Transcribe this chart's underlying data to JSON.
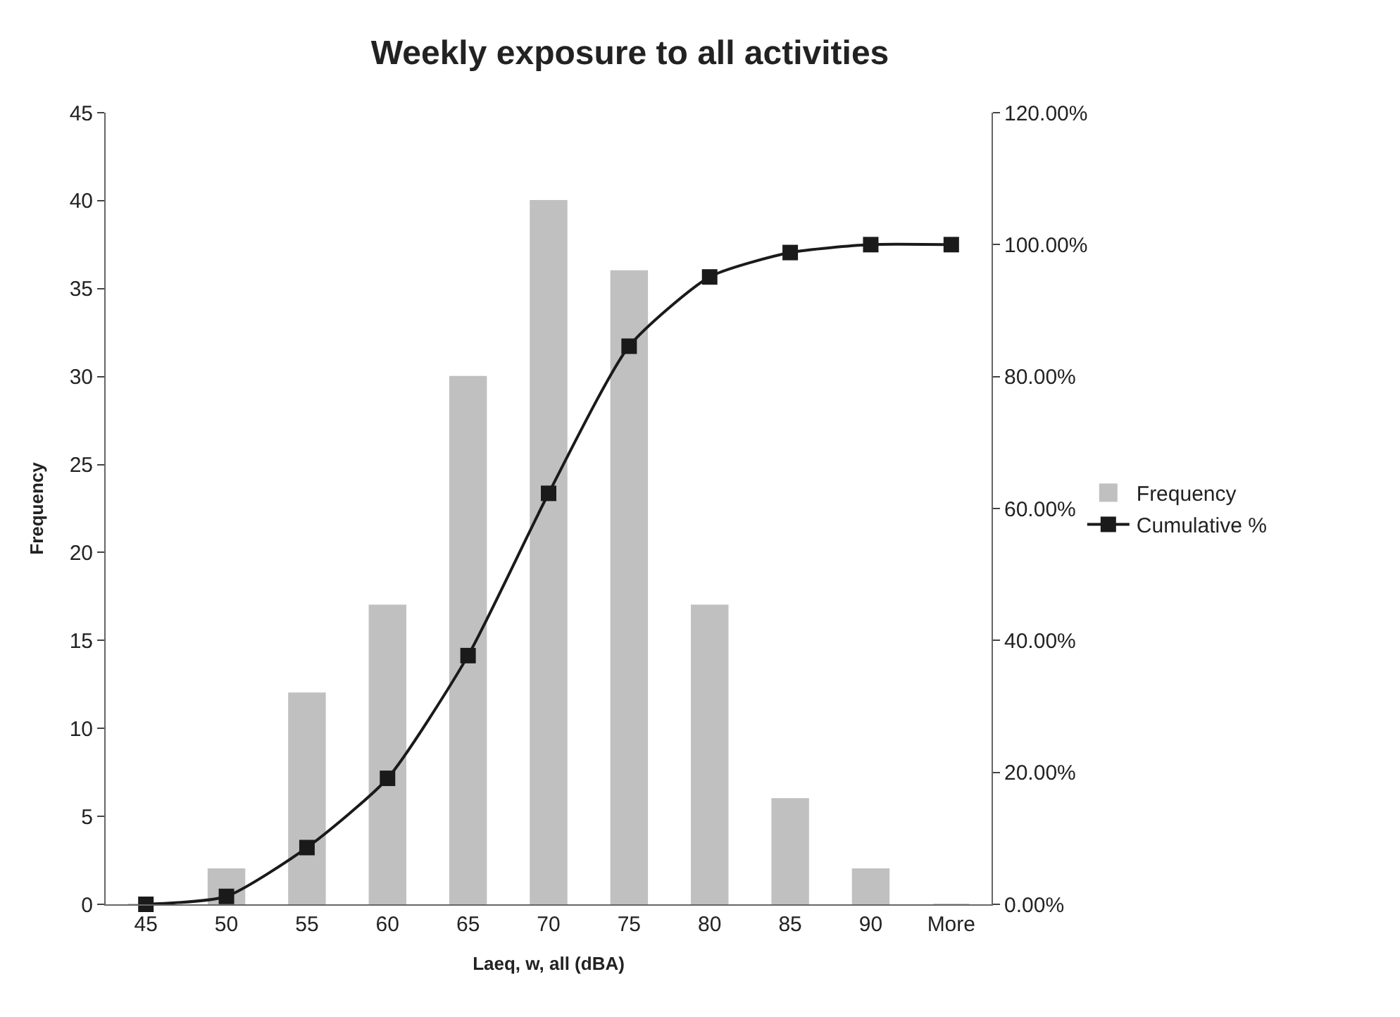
{
  "chart_data": {
    "type": "bar",
    "title": "Weekly exposure to all activities",
    "xlabel": "Laeq, w, all (dBA)",
    "ylabel": "Frequency",
    "categories": [
      "45",
      "50",
      "55",
      "60",
      "65",
      "70",
      "75",
      "80",
      "85",
      "90",
      "More"
    ],
    "series": [
      {
        "name": "Frequency",
        "color": "#c0c0c0",
        "values": [
          0,
          2,
          12,
          17,
          30,
          40,
          36,
          17,
          6,
          2,
          0
        ]
      },
      {
        "name": "Cumulative %",
        "type": "line",
        "axis": "y2",
        "color": "#1a1a1a",
        "marker": "square",
        "line_style": "solid",
        "values": [
          0,
          1.2,
          8.6,
          19.1,
          37.7,
          62.3,
          84.6,
          95.1,
          98.8,
          100,
          100
        ]
      }
    ],
    "ylim": [
      0,
      45
    ],
    "yticks": [
      0,
      5,
      10,
      15,
      20,
      25,
      30,
      35,
      40,
      45
    ],
    "y2lim": [
      0,
      120
    ],
    "y2ticks": [
      {
        "value": 0,
        "label": "0.00%"
      },
      {
        "value": 20,
        "label": "20.00%"
      },
      {
        "value": 40,
        "label": "40.00%"
      },
      {
        "value": 60,
        "label": "60.00%"
      },
      {
        "value": 80,
        "label": "80.00%"
      },
      {
        "value": 100,
        "label": "100.00%"
      },
      {
        "value": 120,
        "label": "120.00%"
      }
    ],
    "legend": "right"
  }
}
